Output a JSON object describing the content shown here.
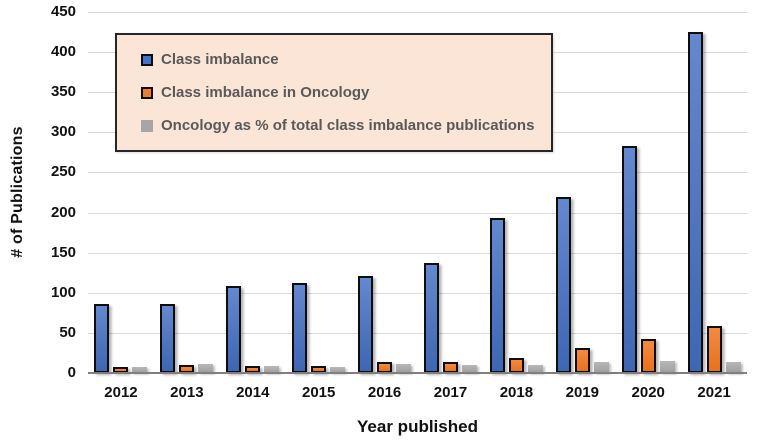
{
  "chart_data": {
    "type": "bar",
    "title": "",
    "xlabel": "Year published",
    "ylabel": "# of Publications",
    "categories": [
      "2012",
      "2013",
      "2014",
      "2015",
      "2016",
      "2017",
      "2018",
      "2019",
      "2020",
      "2021"
    ],
    "series": [
      {
        "name": "Class imbalance",
        "color": "#4472C4",
        "values": [
          86,
          86,
          108,
          112,
          121,
          137,
          193,
          220,
          283,
          425
        ]
      },
      {
        "name": "Class imbalance in Oncology",
        "color": "#ED7D31",
        "values": [
          7,
          10,
          9,
          9,
          14,
          14,
          19,
          31,
          43,
          59
        ]
      },
      {
        "name": "Oncology as % of total class imbalance publications",
        "color": "#A6A6A6",
        "values": [
          8.1,
          11.6,
          8.3,
          8,
          11.6,
          10.2,
          9.8,
          14.1,
          15.2,
          13.9
        ]
      }
    ],
    "ylim": [
      0,
      450
    ],
    "yticks": [
      0,
      50,
      100,
      150,
      200,
      250,
      300,
      350,
      400,
      450
    ],
    "grid": true,
    "legend_position": "top-left",
    "legend_background": "#FBE5D6",
    "legend_border": "#262626"
  }
}
